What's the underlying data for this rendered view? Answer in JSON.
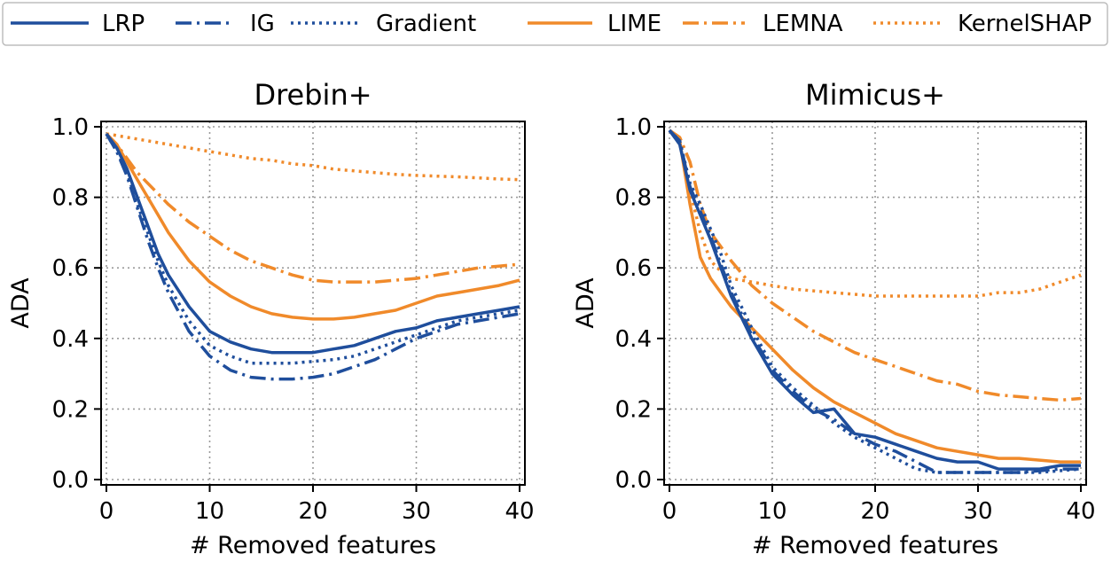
{
  "legend": [
    {
      "label": "LRP",
      "color": "#1f4e9c",
      "dash": "solid"
    },
    {
      "label": "IG",
      "color": "#1f4e9c",
      "dash": "dashdot"
    },
    {
      "label": "Gradient",
      "color": "#1f4e9c",
      "dash": "dotted"
    },
    {
      "label": "LIME",
      "color": "#f08a2a",
      "dash": "solid"
    },
    {
      "label": "LEMNA",
      "color": "#f08a2a",
      "dash": "dashdot"
    },
    {
      "label": "KernelSHAP",
      "color": "#f08a2a",
      "dash": "dotted"
    }
  ],
  "chart_data": [
    {
      "type": "line",
      "title": "Drebin+",
      "xlabel": "# Removed features",
      "ylabel": "ADA",
      "xlim": [
        0,
        40
      ],
      "ylim": [
        0,
        1.0
      ],
      "xticks": [
        0,
        10,
        20,
        30,
        40
      ],
      "yticks": [
        0.0,
        0.2,
        0.4,
        0.6,
        0.8,
        1.0
      ],
      "ytick_labels": [
        "0.0",
        "0.2",
        "0.4",
        "0.6",
        "0.8",
        "1.0"
      ],
      "grid": true,
      "x": [
        0,
        1,
        2,
        3,
        4,
        5,
        6,
        8,
        10,
        12,
        14,
        16,
        18,
        20,
        22,
        24,
        26,
        28,
        30,
        32,
        34,
        36,
        38,
        40
      ],
      "series": [
        {
          "name": "LRP",
          "values": [
            0.98,
            0.94,
            0.88,
            0.8,
            0.72,
            0.64,
            0.58,
            0.49,
            0.42,
            0.39,
            0.37,
            0.36,
            0.36,
            0.36,
            0.37,
            0.38,
            0.4,
            0.42,
            0.43,
            0.45,
            0.46,
            0.47,
            0.48,
            0.49
          ]
        },
        {
          "name": "IG",
          "values": [
            0.98,
            0.93,
            0.86,
            0.77,
            0.68,
            0.6,
            0.53,
            0.42,
            0.35,
            0.31,
            0.29,
            0.285,
            0.285,
            0.29,
            0.3,
            0.32,
            0.34,
            0.37,
            0.4,
            0.42,
            0.44,
            0.45,
            0.46,
            0.47
          ]
        },
        {
          "name": "Gradient",
          "values": [
            0.98,
            0.93,
            0.87,
            0.78,
            0.7,
            0.62,
            0.55,
            0.45,
            0.38,
            0.35,
            0.33,
            0.33,
            0.33,
            0.335,
            0.34,
            0.35,
            0.37,
            0.39,
            0.41,
            0.43,
            0.45,
            0.46,
            0.47,
            0.48
          ]
        },
        {
          "name": "LIME",
          "values": [
            0.98,
            0.95,
            0.9,
            0.85,
            0.8,
            0.75,
            0.7,
            0.62,
            0.56,
            0.52,
            0.49,
            0.47,
            0.46,
            0.455,
            0.455,
            0.46,
            0.47,
            0.48,
            0.5,
            0.52,
            0.53,
            0.54,
            0.55,
            0.565
          ]
        },
        {
          "name": "LEMNA",
          "values": [
            0.98,
            0.95,
            0.91,
            0.87,
            0.84,
            0.81,
            0.78,
            0.73,
            0.69,
            0.65,
            0.62,
            0.6,
            0.58,
            0.565,
            0.56,
            0.56,
            0.56,
            0.565,
            0.57,
            0.58,
            0.59,
            0.6,
            0.605,
            0.61
          ]
        },
        {
          "name": "KernelSHAP",
          "values": [
            0.98,
            0.975,
            0.97,
            0.965,
            0.96,
            0.955,
            0.95,
            0.94,
            0.93,
            0.92,
            0.91,
            0.905,
            0.895,
            0.89,
            0.88,
            0.875,
            0.87,
            0.865,
            0.862,
            0.86,
            0.858,
            0.855,
            0.852,
            0.85
          ]
        }
      ]
    },
    {
      "type": "line",
      "title": "Mimicus+",
      "xlabel": "# Removed features",
      "ylabel": "ADA",
      "xlim": [
        0,
        40
      ],
      "ylim": [
        0,
        1.0
      ],
      "xticks": [
        0,
        10,
        20,
        30,
        40
      ],
      "yticks": [
        0.0,
        0.2,
        0.4,
        0.6,
        0.8,
        1.0
      ],
      "ytick_labels": [
        "0.0",
        "0.2",
        "0.4",
        "0.6",
        "0.8",
        "1.0"
      ],
      "grid": true,
      "x": [
        0,
        1,
        2,
        3,
        4,
        5,
        6,
        8,
        10,
        12,
        14,
        16,
        18,
        20,
        22,
        24,
        26,
        28,
        30,
        32,
        34,
        36,
        38,
        40
      ],
      "series": [
        {
          "name": "LRP",
          "values": [
            0.99,
            0.95,
            0.82,
            0.75,
            0.68,
            0.6,
            0.52,
            0.4,
            0.3,
            0.24,
            0.19,
            0.2,
            0.13,
            0.12,
            0.1,
            0.08,
            0.06,
            0.05,
            0.05,
            0.03,
            0.03,
            0.03,
            0.04,
            0.04
          ]
        },
        {
          "name": "IG",
          "values": [
            0.99,
            0.96,
            0.83,
            0.76,
            0.69,
            0.61,
            0.53,
            0.41,
            0.31,
            0.25,
            0.2,
            0.17,
            0.13,
            0.1,
            0.08,
            0.05,
            0.02,
            0.02,
            0.02,
            0.02,
            0.02,
            0.025,
            0.03,
            0.03
          ]
        },
        {
          "name": "Gradient",
          "values": [
            0.99,
            0.96,
            0.84,
            0.78,
            0.71,
            0.64,
            0.55,
            0.43,
            0.32,
            0.26,
            0.21,
            0.16,
            0.12,
            0.09,
            0.06,
            0.03,
            0.02,
            0.02,
            0.02,
            0.02,
            0.02,
            0.02,
            0.025,
            0.03
          ]
        },
        {
          "name": "LIME",
          "values": [
            0.99,
            0.96,
            0.78,
            0.63,
            0.57,
            0.53,
            0.49,
            0.43,
            0.37,
            0.31,
            0.26,
            0.22,
            0.19,
            0.16,
            0.13,
            0.11,
            0.09,
            0.08,
            0.07,
            0.06,
            0.06,
            0.055,
            0.05,
            0.05
          ]
        },
        {
          "name": "LEMNA",
          "values": [
            0.99,
            0.97,
            0.9,
            0.78,
            0.7,
            0.66,
            0.62,
            0.55,
            0.5,
            0.46,
            0.42,
            0.39,
            0.36,
            0.34,
            0.32,
            0.3,
            0.28,
            0.27,
            0.25,
            0.24,
            0.235,
            0.23,
            0.225,
            0.23
          ]
        },
        {
          "name": "KernelSHAP",
          "values": [
            0.99,
            0.96,
            0.82,
            0.7,
            0.62,
            0.59,
            0.57,
            0.56,
            0.55,
            0.54,
            0.535,
            0.53,
            0.525,
            0.52,
            0.52,
            0.52,
            0.52,
            0.52,
            0.52,
            0.53,
            0.53,
            0.54,
            0.56,
            0.58
          ]
        }
      ]
    }
  ]
}
